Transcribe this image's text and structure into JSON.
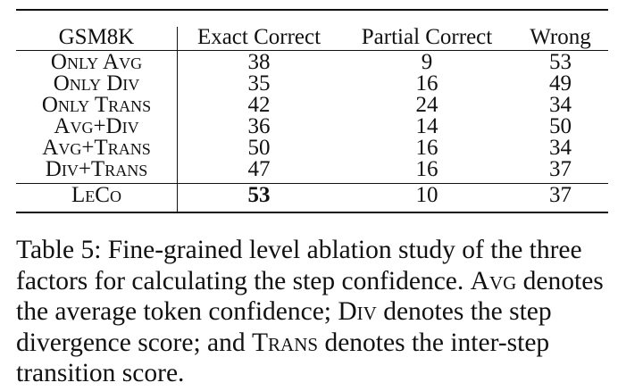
{
  "table": {
    "columns": [
      "GSM8K",
      "Exact Correct",
      "Partial Correct",
      "Wrong"
    ],
    "rows": [
      {
        "method": "Only Avg",
        "exact": "38",
        "partial": "9",
        "wrong": "53"
      },
      {
        "method": "Only Div",
        "exact": "35",
        "partial": "16",
        "wrong": "49"
      },
      {
        "method": "Only Trans",
        "exact": "42",
        "partial": "24",
        "wrong": "34"
      },
      {
        "method": "Avg+Div",
        "exact": "36",
        "partial": "14",
        "wrong": "50"
      },
      {
        "method": "Avg+Trans",
        "exact": "50",
        "partial": "16",
        "wrong": "34"
      },
      {
        "method": "Div+Trans",
        "exact": "47",
        "partial": "16",
        "wrong": "37"
      },
      {
        "method": "LeCo",
        "exact": "53",
        "partial": "10",
        "wrong": "37"
      }
    ]
  },
  "caption": {
    "lines": [
      "Table 5: Fine-grained level ablation study of the three",
      "factors for calculating the step confidence. Avg denotes",
      "the average token confidence; Div denotes the step",
      "divergence score; and Trans denotes the inter-step",
      "transition score."
    ]
  }
}
